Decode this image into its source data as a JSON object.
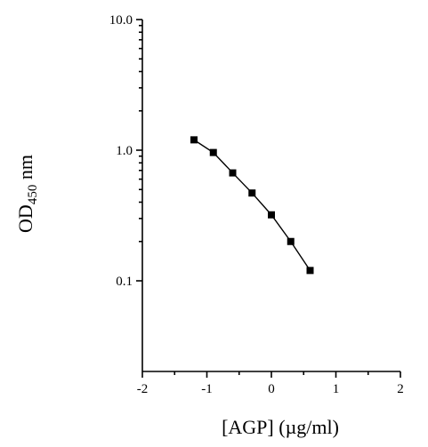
{
  "chart_data": {
    "type": "line",
    "title": "",
    "xlabel": "[AGP] (µg/ml)",
    "ylabel_main": "OD",
    "ylabel_sub": "450",
    "ylabel_unit": " nm",
    "xlim": [
      -2,
      2
    ],
    "ylim": [
      0.02,
      10
    ],
    "yscale": "log",
    "grid": false,
    "x_ticks": [
      -2,
      -1,
      0,
      1,
      2
    ],
    "x_tick_labels": [
      "-2",
      "-1",
      "0",
      "1",
      "2"
    ],
    "y_ticks": [
      0.1,
      1,
      10
    ],
    "y_tick_labels": [
      "0.1",
      "1.0",
      "10.0"
    ],
    "series": [
      {
        "marker": "square",
        "color": "#000000",
        "x": [
          -1.2,
          -0.9,
          -0.6,
          -0.3,
          0.0,
          0.3,
          0.6
        ],
        "y": [
          1.2,
          0.96,
          0.67,
          0.47,
          0.32,
          0.2,
          0.12
        ]
      }
    ]
  }
}
